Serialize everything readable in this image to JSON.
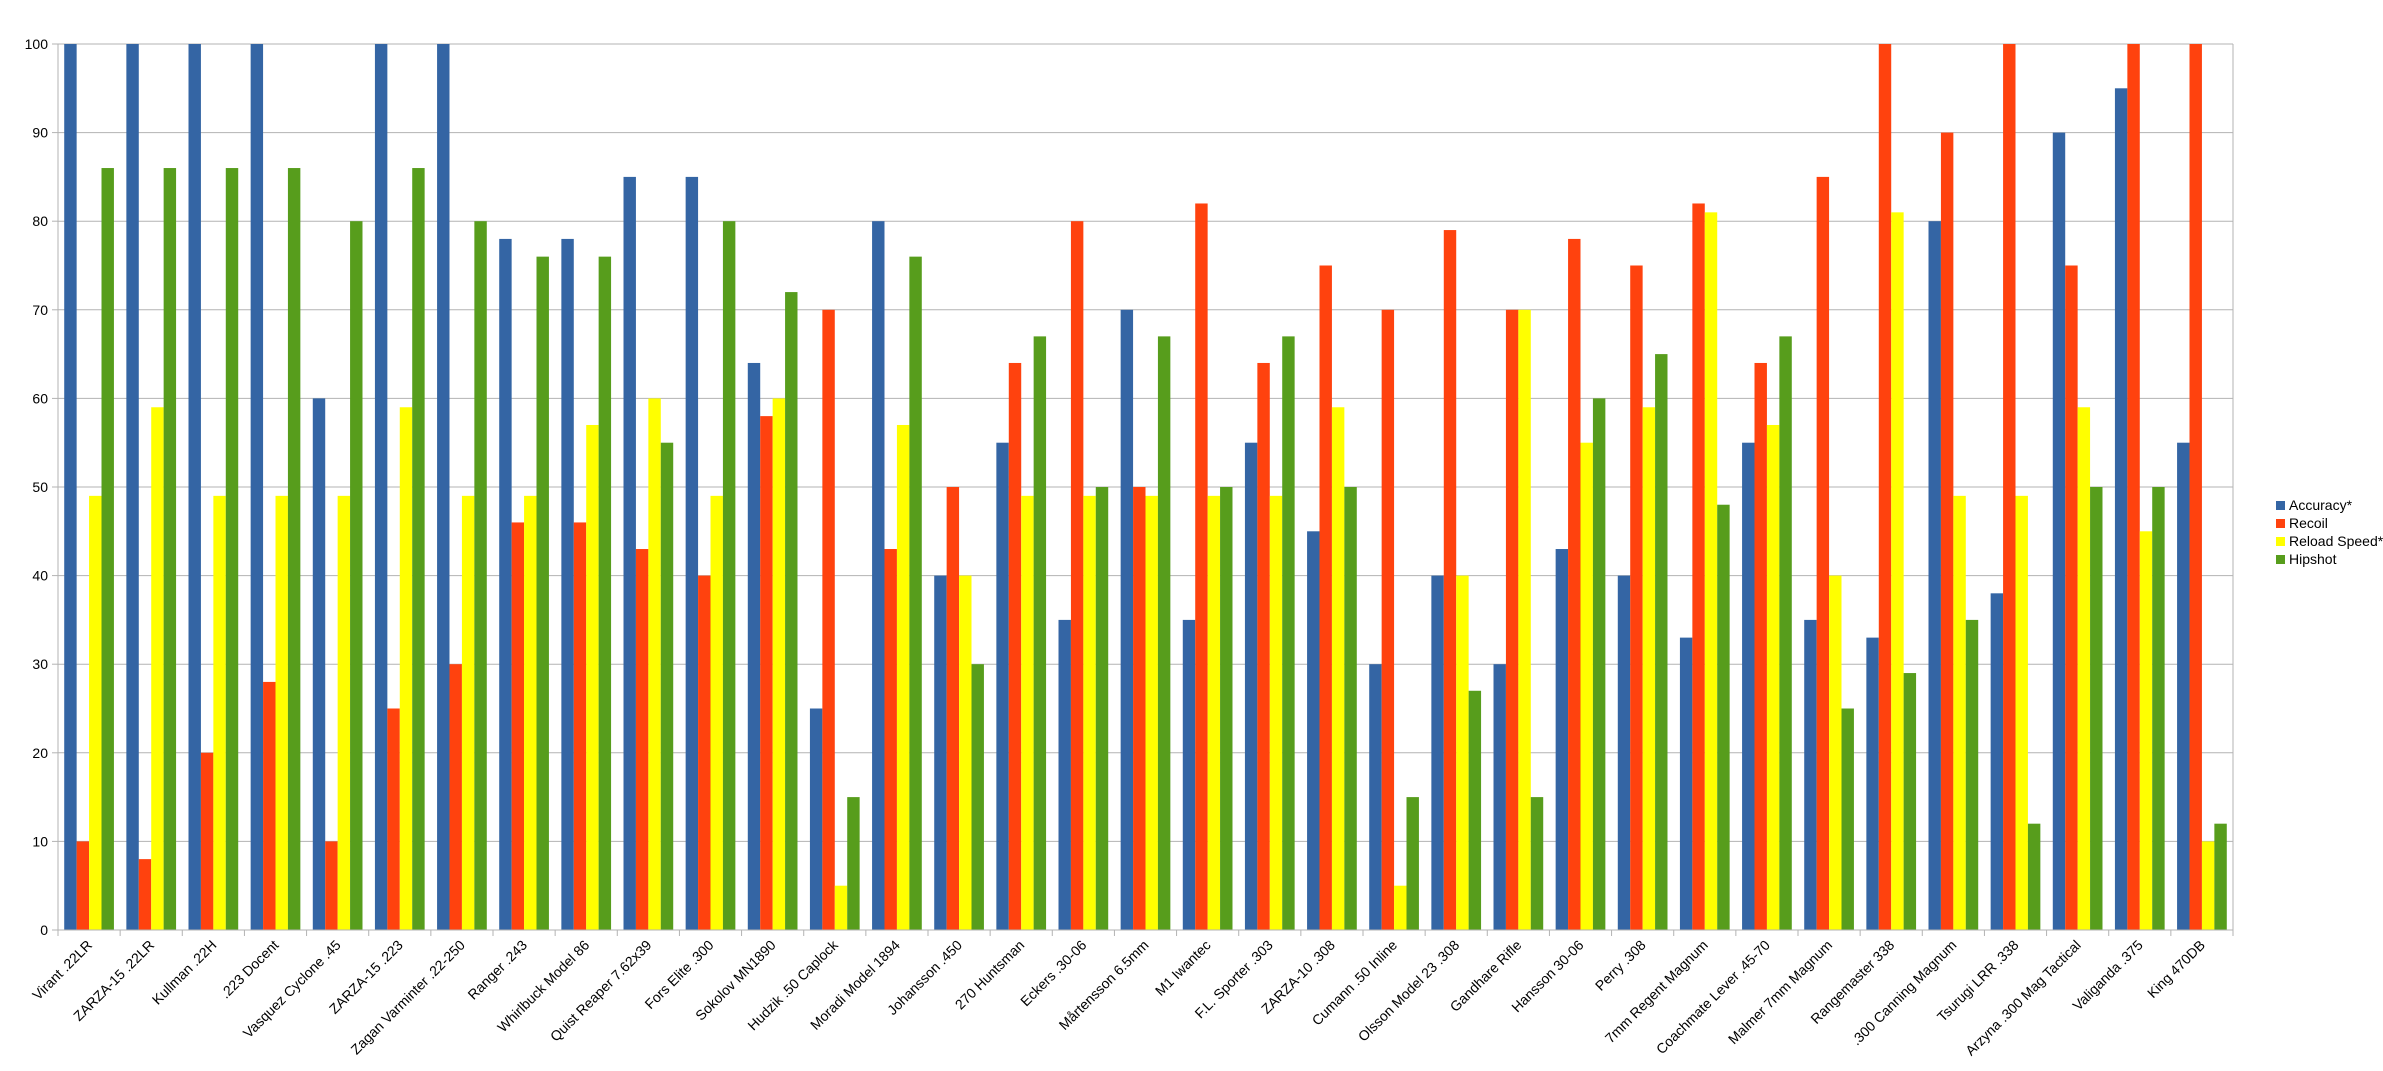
{
  "chart_data": {
    "type": "bar",
    "title": "",
    "xlabel": "",
    "ylabel": "",
    "ylim": [
      0,
      100
    ],
    "yticks": [
      0,
      10,
      20,
      30,
      40,
      50,
      60,
      70,
      80,
      90,
      100
    ],
    "grid": true,
    "legend_position": "right",
    "categories": [
      "Virant .22LR",
      "ZARZA-15 .22LR",
      "Kullman .22H",
      ".223 Docent",
      "Vasquez Cyclone .45",
      "ZARZA-15 .223",
      "Zagan Varminter .22-250",
      "Ranger .243",
      "Whirlbuck Model 86",
      "Quist Reaper 7.62x39",
      "Fors Elite .300",
      "Sokolov MN1890",
      "Hudzik .50 Caplock",
      "Moradi Model 1894",
      "Johansson .450",
      "270 Huntsman",
      "Eckers .30-06",
      "Mårtensson 6.5mm",
      "M1 Iwantec",
      "F.L. Sporter .303",
      "ZARZA-10 .308",
      "Cumann .50 Inline",
      "Olsson Model 23 .308",
      "Gandhare Rifle",
      "Hansson 30-06",
      "Perry .308",
      "7mm Regent Magnum",
      "Coachmate Lever .45-70",
      "Malmer 7mm Magnum",
      "Rangemaster 338",
      ".300 Canning Magnum",
      "Tsurugi LRR .338",
      "Arzyna .300 Mag Tactical",
      "Valiganda .375",
      "King 470DB"
    ],
    "series": [
      {
        "name": "Accuracy*",
        "color": "#3465a4",
        "values": [
          100,
          100,
          100,
          100,
          60,
          100,
          100,
          78,
          78,
          85,
          85,
          64,
          25,
          80,
          40,
          55,
          35,
          70,
          35,
          55,
          45,
          30,
          40,
          30,
          43,
          40,
          33,
          55,
          35,
          33,
          80,
          38,
          90,
          95,
          55
        ]
      },
      {
        "name": "Recoil",
        "color": "#ff420e",
        "values": [
          10,
          8,
          20,
          28,
          10,
          25,
          30,
          46,
          46,
          43,
          40,
          58,
          70,
          43,
          50,
          64,
          80,
          50,
          82,
          64,
          75,
          70,
          79,
          70,
          78,
          75,
          82,
          64,
          85,
          100,
          90,
          100,
          75,
          100,
          100
        ]
      },
      {
        "name": "Reload Speed*",
        "color": "#ffff00",
        "values": [
          49,
          59,
          49,
          49,
          49,
          59,
          49,
          49,
          57,
          60,
          49,
          60,
          5,
          57,
          40,
          49,
          49,
          49,
          49,
          49,
          59,
          5,
          40,
          70,
          55,
          59,
          81,
          57,
          40,
          81,
          49,
          49,
          59,
          45,
          10
        ]
      },
      {
        "name": "Hipshot",
        "color": "#579d1c",
        "values": [
          86,
          86,
          86,
          86,
          80,
          86,
          80,
          76,
          76,
          55,
          80,
          72,
          15,
          76,
          30,
          67,
          50,
          67,
          50,
          67,
          50,
          15,
          27,
          15,
          60,
          65,
          48,
          67,
          25,
          29,
          35,
          12,
          50,
          50,
          12
        ]
      }
    ]
  }
}
